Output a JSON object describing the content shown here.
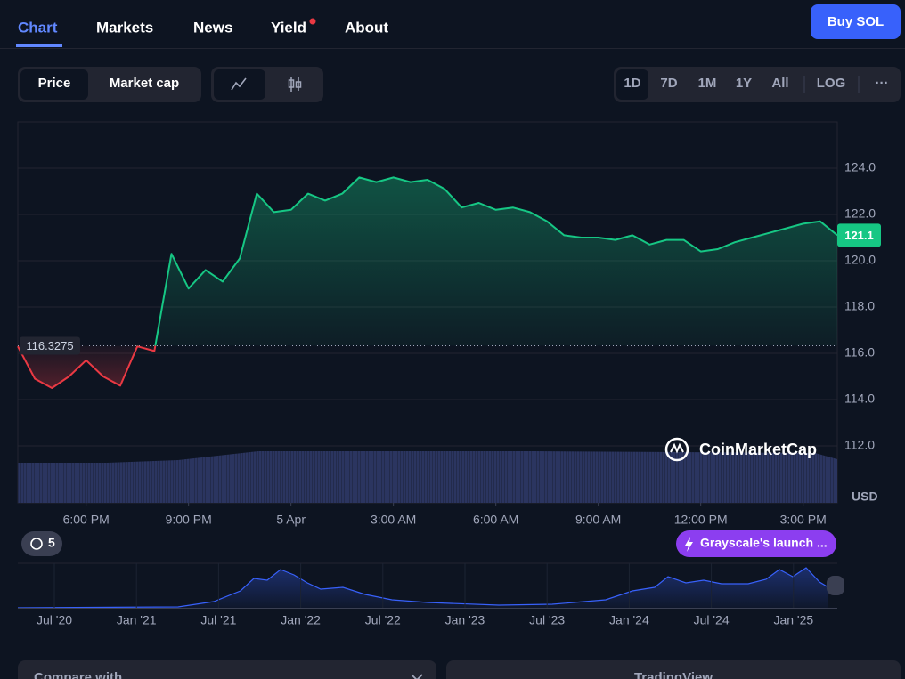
{
  "nav": {
    "tabs": [
      "Chart",
      "Markets",
      "News",
      "Yield",
      "About"
    ],
    "buy_button": "Buy SOL"
  },
  "controls": {
    "metric": [
      "Price",
      "Market cap"
    ],
    "ranges": [
      "1D",
      "7D",
      "1M",
      "1Y",
      "All"
    ],
    "log": "LOG",
    "more": "···"
  },
  "chart_data": {
    "type": "line",
    "x": [
      16,
      16.5,
      17,
      17.5,
      18,
      18.5,
      19,
      19.5,
      20,
      20.5,
      21,
      21.5,
      22,
      22.5,
      23,
      23.5,
      24,
      24.5,
      25,
      25.5,
      26,
      26.5,
      27,
      27.5,
      28,
      28.5,
      29,
      29.5,
      30,
      30.5,
      31,
      31.5,
      32,
      32.5,
      33,
      33.5,
      34,
      34.5,
      35,
      35.5,
      36,
      36.5,
      37,
      37.5,
      38,
      38.5,
      39,
      39.5,
      40
    ],
    "values": [
      116.3,
      114.9,
      114.5,
      115.0,
      115.7,
      115.0,
      114.6,
      116.3,
      116.1,
      120.3,
      118.8,
      119.6,
      119.1,
      120.1,
      122.9,
      122.1,
      122.2,
      122.9,
      122.6,
      122.9,
      123.6,
      123.4,
      123.6,
      123.4,
      123.5,
      123.1,
      122.3,
      122.5,
      122.2,
      122.3,
      122.1,
      121.7,
      121.1,
      121.0,
      121.0,
      120.9,
      121.1,
      120.7,
      120.9,
      120.9,
      120.4,
      120.5,
      120.8,
      121.0,
      121.2,
      121.4,
      121.6,
      121.7,
      121.1
    ],
    "xlim": [
      16,
      40
    ],
    "xticks": [
      {
        "value": 18,
        "label": "6:00 PM"
      },
      {
        "value": 21,
        "label": "9:00 PM"
      },
      {
        "value": 24,
        "label": "5 Apr"
      },
      {
        "value": 27,
        "label": "3:00 AM"
      },
      {
        "value": 30,
        "label": "6:00 AM"
      },
      {
        "value": 33,
        "label": "9:00 AM"
      },
      {
        "value": 36,
        "label": "12:00 PM"
      },
      {
        "value": 39,
        "label": "3:00 PM"
      }
    ],
    "ylim": [
      109.54,
      126
    ],
    "yticks": [
      {
        "value": 112,
        "label": "112.0"
      },
      {
        "value": 114,
        "label": "114.0"
      },
      {
        "value": 116,
        "label": "116.0"
      },
      {
        "value": 118,
        "label": "118.0"
      },
      {
        "value": 120,
        "label": "120.0"
      },
      {
        "value": 122,
        "label": "122.0"
      },
      {
        "value": 124,
        "label": "124.0"
      }
    ],
    "grid": true,
    "baseline": 116.3275,
    "up_color": "#16c784",
    "down_color": "#ea3943",
    "unit": "USD",
    "watermark": "CoinMarketCap"
  },
  "events": {
    "count": 5,
    "pill": "Grayscale's launch ..."
  },
  "overview": {
    "labels": [
      "Jul '20",
      "Jan '21",
      "Jul '21",
      "Jan '22",
      "Jul '22",
      "Jan '23",
      "Jul '23",
      "Jan '24",
      "Jul '24",
      "Jan '25"
    ]
  },
  "bottom": {
    "compare": "Compare with",
    "tradingview": "TradingView"
  }
}
